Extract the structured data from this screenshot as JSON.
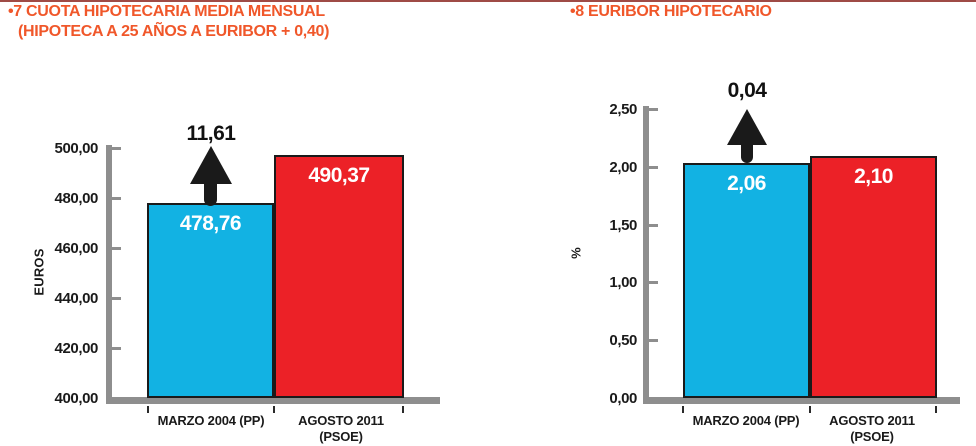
{
  "colors": {
    "accent_orange": "#f0572a",
    "bar_cyan": "#12b2e3",
    "bar_red": "#ec2127",
    "axis_gray": "#8e8e8e",
    "text_black": "#1a1a1a",
    "bar_value_text": "#ffffff",
    "top_edge_line": "#8e2c26"
  },
  "charts": [
    {
      "title_line1": "•7 CUOTA HIPOTECARIA MEDIA MENSUAL",
      "title_line2": "(HIPOTECA A 25 AÑOS A EURIBOR + 0,40)",
      "y_axis_label": "EUROS",
      "y_ticks": [
        "500,00",
        "480,00",
        "460,00",
        "440,00",
        "420,00",
        "400,00"
      ],
      "delta_label": "11,61",
      "bar_labels": [
        "478,76",
        "490,37"
      ],
      "categories": [
        "MARZO 2004 (PP)",
        "AGOSTO 2011 (PSOE)"
      ]
    },
    {
      "title_line1": "•8 EURIBOR HIPOTECARIO",
      "y_axis_label": "%",
      "y_ticks": [
        "2,50",
        "2,00",
        "1,50",
        "1,00",
        "0,50",
        "0,00"
      ],
      "delta_label": "0,04",
      "bar_labels": [
        "2,06",
        "2,10"
      ],
      "categories": [
        "MARZO 2004 (PP)",
        "AGOSTO 2011 (PSOE)"
      ]
    }
  ],
  "chart_data": [
    {
      "type": "bar",
      "title": "7 CUOTA HIPOTECARIA MEDIA MENSUAL (HIPOTECA A 25 AÑOS A EURIBOR + 0,40)",
      "categories": [
        "MARZO 2004 (PP)",
        "AGOSTO 2011 (PSOE)"
      ],
      "values": [
        478.76,
        490.37
      ],
      "value_labels": [
        "478,76",
        "490,37"
      ],
      "bar_colors": [
        "#12b2e3",
        "#ec2127"
      ],
      "annotation": "11,61",
      "xlabel": "",
      "ylabel": "EUROS",
      "ylim": [
        400,
        500
      ],
      "ytick_step": 20,
      "grid": false,
      "legend": false,
      "note_not_to_scale": "bars as drawn correspond visually to approx 477.8 and 497.2 on the axis",
      "drawn_values": [
        477.8,
        497.2
      ]
    },
    {
      "type": "bar",
      "title": "8 EURIBOR HIPOTECARIO",
      "categories": [
        "MARZO 2004 (PP)",
        "AGOSTO 2011 (PSOE)"
      ],
      "values": [
        2.06,
        2.1
      ],
      "value_labels": [
        "2,06",
        "2,10"
      ],
      "bar_colors": [
        "#12b2e3",
        "#ec2127"
      ],
      "annotation": "0,04",
      "xlabel": "",
      "ylabel": "%",
      "ylim": [
        0,
        2.5
      ],
      "ytick_step": 0.5,
      "grid": false,
      "legend": false,
      "drawn_values": [
        2.03,
        2.09
      ]
    }
  ]
}
